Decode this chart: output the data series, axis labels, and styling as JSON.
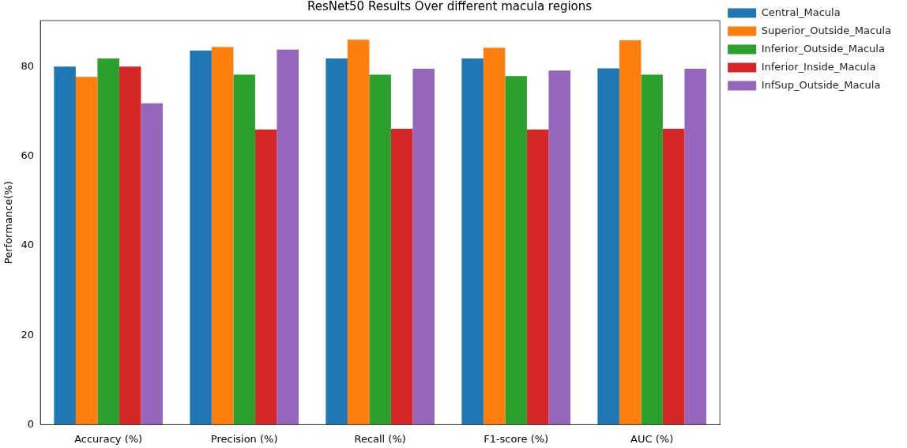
{
  "chart_data": {
    "type": "bar",
    "title": "ResNet50 Results Over different macula regions",
    "ylabel": "Performance(%)",
    "categories": [
      "Accuracy (%)",
      "Precision (%)",
      "Recall (%)",
      "F1-score (%)",
      "AUC (%)"
    ],
    "series": [
      {
        "name": "Central_Macula",
        "color": "#1f77b4",
        "values": [
          80.1,
          83.7,
          81.9,
          81.9,
          79.7
        ]
      },
      {
        "name": "Superior_Outside_Macula",
        "color": "#ff7f0e",
        "values": [
          77.8,
          84.5,
          86.1,
          84.3,
          86.0
        ]
      },
      {
        "name": "Inferior_Outside_Macula",
        "color": "#2ca02c",
        "values": [
          81.9,
          78.3,
          78.3,
          78.0,
          78.3
        ]
      },
      {
        "name": "Inferior_Inside_Macula",
        "color": "#d62728",
        "values": [
          80.1,
          66.0,
          66.2,
          66.0,
          66.2
        ]
      },
      {
        "name": "InfSup_Outside_Macula",
        "color": "#9467bd",
        "values": [
          71.9,
          83.9,
          79.6,
          79.2,
          79.6
        ]
      }
    ],
    "ylim": [
      0,
      90.4
    ],
    "yticks": [
      0,
      20,
      40,
      60,
      80
    ],
    "grid": false,
    "legend": "right"
  }
}
